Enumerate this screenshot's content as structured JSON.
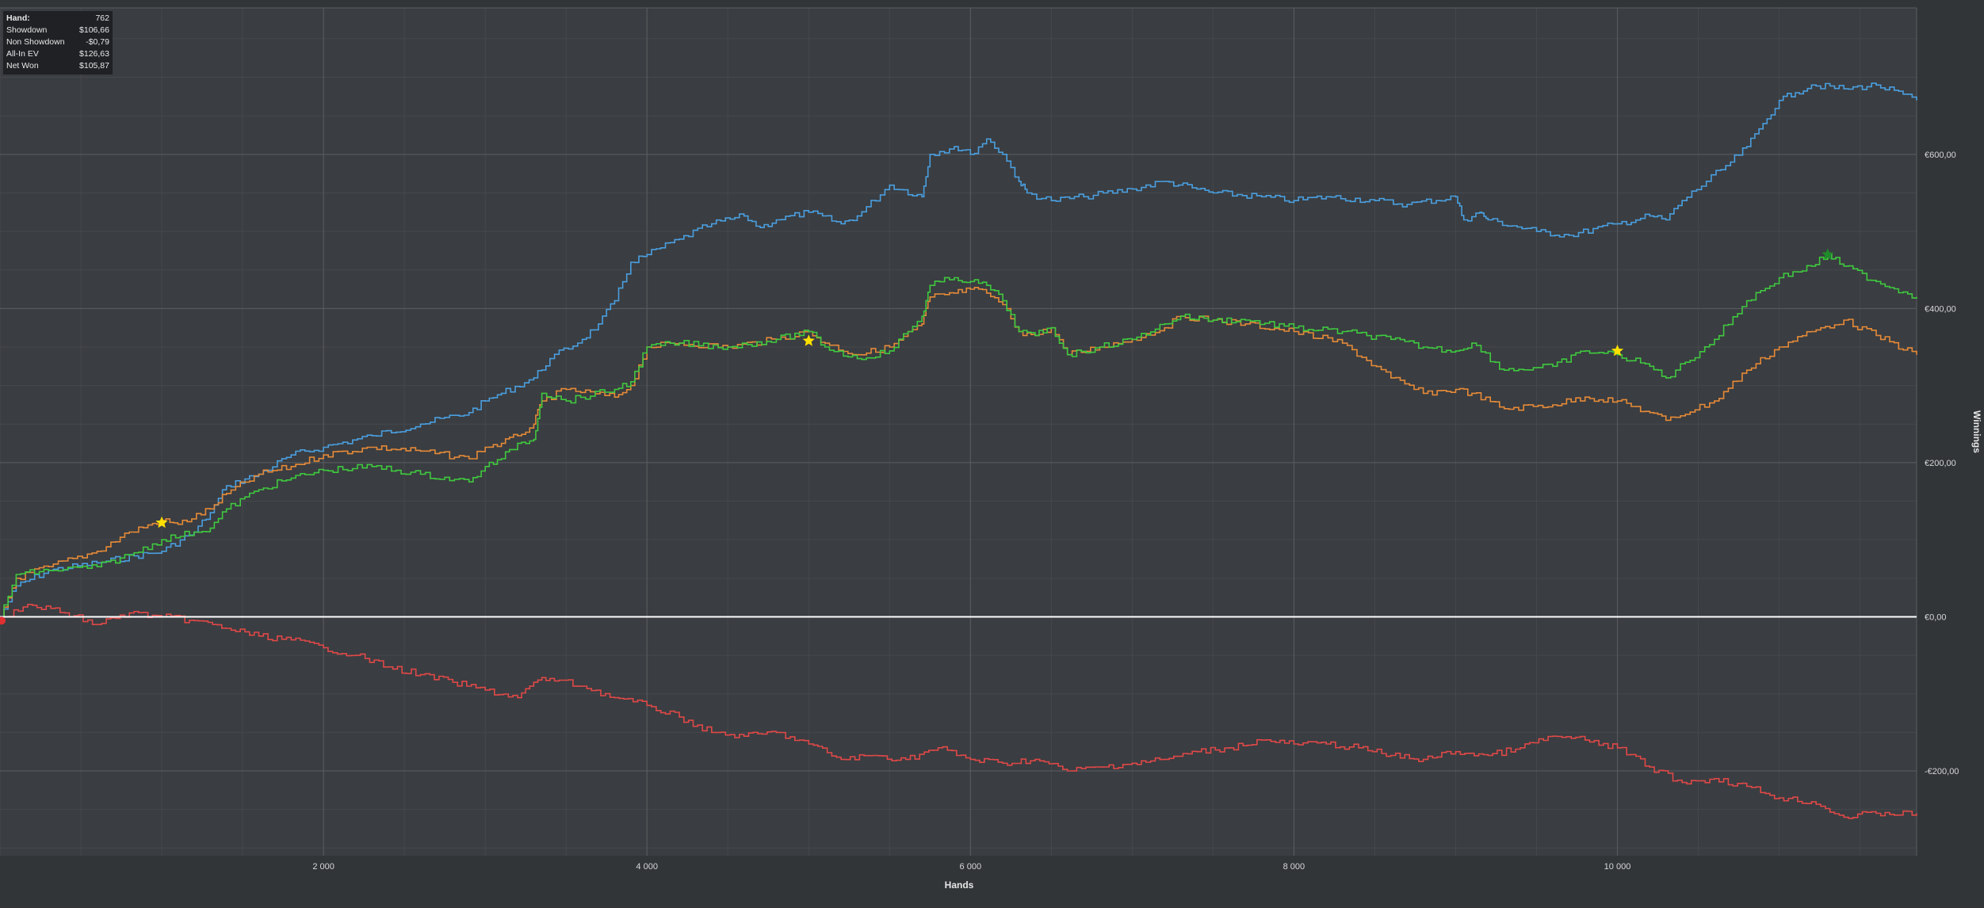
{
  "stats": {
    "rows": [
      {
        "label": "Hand:",
        "value": "762"
      },
      {
        "label": "Showdown",
        "value": "$106,66"
      },
      {
        "label": "Non Showdown",
        "value": "-$0,79"
      },
      {
        "label": "All-In EV",
        "value": "$126,63"
      },
      {
        "label": "Net Won",
        "value": "$105,87"
      }
    ]
  },
  "chart_data": {
    "type": "line",
    "xlabel": "Hands",
    "ylabel": "Winnings",
    "xlim": [
      0,
      11850
    ],
    "ylim": [
      -310,
      790
    ],
    "x_ticks": [
      2000,
      4000,
      6000,
      8000,
      10000
    ],
    "x_tick_labels": [
      "2 000",
      "4 000",
      "6 000",
      "8 000",
      "10 000"
    ],
    "y_ticks": [
      -200,
      0,
      200,
      400,
      600
    ],
    "y_tick_labels": [
      "-€200,00",
      "€0,00",
      "€200,00",
      "€400,00",
      "€600,00"
    ],
    "grid": true,
    "legend": "none",
    "zero_line_color": "#ffffff",
    "series": [
      {
        "color": "#4a9fe0",
        "x": [
          0,
          100,
          300,
          600,
          1000,
          1200,
          1300,
          1400,
          1600,
          1800,
          2000,
          2300,
          2600,
          2900,
          3000,
          3100,
          3300,
          3400,
          3600,
          3700,
          3800,
          3900,
          4000,
          4200,
          4400,
          4600,
          4700,
          4800,
          5000,
          5200,
          5300,
          5500,
          5700,
          5750,
          5900,
          6000,
          6100,
          6200,
          6300,
          6350,
          6500,
          6700,
          7000,
          7200,
          7400,
          7500,
          7800,
          8000,
          8200,
          8500,
          8700,
          9000,
          9050,
          9150,
          9200,
          9500,
          9700,
          10000,
          10200,
          10300,
          10400,
          10700,
          10800,
          10900,
          11000,
          11100,
          11200,
          11400,
          11600,
          11850
        ],
        "y": [
          0,
          40,
          60,
          70,
          85,
          110,
          135,
          170,
          185,
          210,
          220,
          235,
          250,
          265,
          280,
          290,
          310,
          335,
          360,
          380,
          410,
          460,
          470,
          490,
          510,
          520,
          505,
          515,
          525,
          510,
          520,
          560,
          545,
          600,
          610,
          600,
          620,
          600,
          565,
          550,
          540,
          545,
          555,
          565,
          555,
          550,
          545,
          540,
          545,
          540,
          535,
          545,
          515,
          525,
          515,
          500,
          495,
          510,
          520,
          515,
          540,
          590,
          610,
          640,
          670,
          680,
          690,
          685,
          690,
          670
        ]
      },
      {
        "color": "#e58a38",
        "x": [
          0,
          100,
          300,
          600,
          800,
          1000,
          1100,
          1300,
          1400,
          1600,
          1800,
          2000,
          2300,
          2600,
          2900,
          3000,
          3100,
          3200,
          3300,
          3350,
          3500,
          3800,
          3900,
          4000,
          4200,
          4500,
          4800,
          5000,
          5100,
          5300,
          5500,
          5700,
          5750,
          5900,
          6000,
          6100,
          6200,
          6300,
          6400,
          6500,
          6600,
          6800,
          7000,
          7200,
          7300,
          7500,
          7700,
          8000,
          8300,
          8600,
          8800,
          9000,
          9100,
          9300,
          9600,
          9800,
          10000,
          10200,
          10300,
          10600,
          10800,
          11000,
          11200,
          11400,
          11600,
          11850
        ],
        "y": [
          0,
          50,
          65,
          85,
          110,
          125,
          120,
          140,
          160,
          185,
          195,
          210,
          220,
          215,
          205,
          220,
          225,
          235,
          250,
          280,
          295,
          285,
          300,
          350,
          355,
          350,
          360,
          370,
          355,
          340,
          350,
          380,
          415,
          420,
          425,
          420,
          405,
          370,
          365,
          375,
          340,
          350,
          360,
          375,
          390,
          385,
          380,
          370,
          355,
          310,
          290,
          295,
          290,
          270,
          275,
          285,
          280,
          265,
          255,
          280,
          320,
          350,
          370,
          385,
          365,
          340
        ]
      },
      {
        "color": "#3fc93f",
        "x": [
          0,
          100,
          300,
          600,
          800,
          1000,
          1200,
          1300,
          1400,
          1600,
          1800,
          2000,
          2300,
          2600,
          2900,
          3000,
          3100,
          3200,
          3300,
          3350,
          3500,
          3800,
          3900,
          4000,
          4200,
          4500,
          4800,
          5000,
          5100,
          5300,
          5500,
          5700,
          5750,
          5900,
          6000,
          6100,
          6200,
          6300,
          6400,
          6500,
          6600,
          6800,
          7000,
          7200,
          7300,
          7500,
          7700,
          8000,
          8300,
          8600,
          8800,
          9000,
          9100,
          9300,
          9600,
          9800,
          10000,
          10200,
          10300,
          10600,
          10800,
          11000,
          11200,
          11300,
          11400,
          11600,
          11850
        ],
        "y": [
          0,
          55,
          60,
          65,
          80,
          100,
          110,
          115,
          140,
          165,
          180,
          190,
          195,
          185,
          175,
          195,
          205,
          225,
          230,
          290,
          280,
          295,
          305,
          350,
          355,
          350,
          360,
          370,
          350,
          335,
          345,
          390,
          430,
          440,
          435,
          430,
          410,
          370,
          365,
          375,
          340,
          350,
          360,
          380,
          390,
          385,
          385,
          375,
          370,
          360,
          350,
          345,
          355,
          320,
          325,
          345,
          340,
          325,
          310,
          360,
          410,
          440,
          455,
          470,
          455,
          435,
          415
        ]
      },
      {
        "color": "#e04848",
        "x": [
          0,
          200,
          400,
          600,
          800,
          1000,
          1200,
          1400,
          1600,
          1800,
          2000,
          2200,
          2400,
          2600,
          2800,
          3000,
          3200,
          3300,
          3400,
          3600,
          3800,
          4000,
          4200,
          4400,
          4600,
          4800,
          5000,
          5200,
          5400,
          5600,
          5800,
          6000,
          6200,
          6400,
          6600,
          6800,
          7000,
          7200,
          7400,
          7600,
          7800,
          8000,
          8200,
          8400,
          8600,
          8800,
          9000,
          9200,
          9400,
          9600,
          9800,
          10000,
          10200,
          10400,
          10600,
          10800,
          11000,
          11200,
          11400,
          11600,
          11850
        ],
        "y": [
          0,
          15,
          5,
          -10,
          5,
          0,
          -5,
          -15,
          -25,
          -30,
          -40,
          -50,
          -65,
          -75,
          -85,
          -95,
          -105,
          -85,
          -80,
          -90,
          -105,
          -115,
          -130,
          -150,
          -155,
          -150,
          -165,
          -185,
          -180,
          -185,
          -170,
          -185,
          -190,
          -185,
          -200,
          -195,
          -190,
          -185,
          -175,
          -170,
          -160,
          -165,
          -165,
          -170,
          -180,
          -185,
          -175,
          -180,
          -170,
          -155,
          -160,
          -170,
          -195,
          -215,
          -210,
          -220,
          -235,
          -240,
          -260,
          -255,
          -255
        ]
      }
    ],
    "markers": [
      {
        "shape": "star",
        "color": "#ffe000",
        "x": 1000,
        "y": 122
      },
      {
        "shape": "star",
        "color": "#ffe000",
        "x": 5000,
        "y": 358
      },
      {
        "shape": "star",
        "color": "#ffe000",
        "x": 10000,
        "y": 345
      },
      {
        "shape": "star",
        "color": "#1f8a2a",
        "x": 11300,
        "y": 470
      },
      {
        "shape": "dot",
        "color": "#e03030",
        "x": 0,
        "y": -5
      }
    ]
  }
}
